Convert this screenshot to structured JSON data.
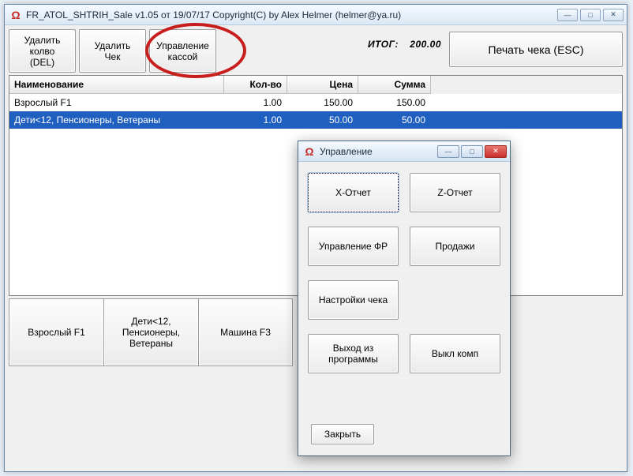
{
  "main": {
    "title": "FR_ATOL_SHTRIH_Sale v1.05 от 19/07/17 Copyright(C) by Alex Helmer (helmer@ya.ru)",
    "toolbar": {
      "delete_qty": "Удалить\nколво\n(DEL)",
      "delete_check": "Удалить\nЧек",
      "manage_cash": "Управление\nкассой"
    },
    "total_label": "ИТОГ:",
    "total_value": "200.00",
    "print_label": "Печать чека (ESC)",
    "grid": {
      "headers": {
        "name": "Наименование",
        "qty": "Кол-во",
        "price": "Цена",
        "sum": "Сумма"
      },
      "rows": [
        {
          "name": "Взрослый F1",
          "qty": "1.00",
          "price": "150.00",
          "sum": "150.00",
          "selected": false
        },
        {
          "name": "Дети<12, Пенсионеры, Ветераны",
          "qty": "1.00",
          "price": "50.00",
          "sum": "50.00",
          "selected": true
        }
      ]
    },
    "bottom": [
      "Взрослый F1",
      "Дети<12,\nПенсионеры,\nВетераны",
      "Машина F3"
    ]
  },
  "dialog": {
    "title": "Управление",
    "buttons": {
      "x_report": "Х-Отчет",
      "z_report": "Z-Отчет",
      "manage_fr": "Управление ФР",
      "sales": "Продажи",
      "check_settings": "Настройки чека",
      "exit_prog": "Выход из\nпрограммы",
      "shutdown": "Выкл комп"
    },
    "close": "Закрыть"
  },
  "colors": {
    "selection": "#1f5fc0",
    "annotation": "#c81e1e"
  }
}
